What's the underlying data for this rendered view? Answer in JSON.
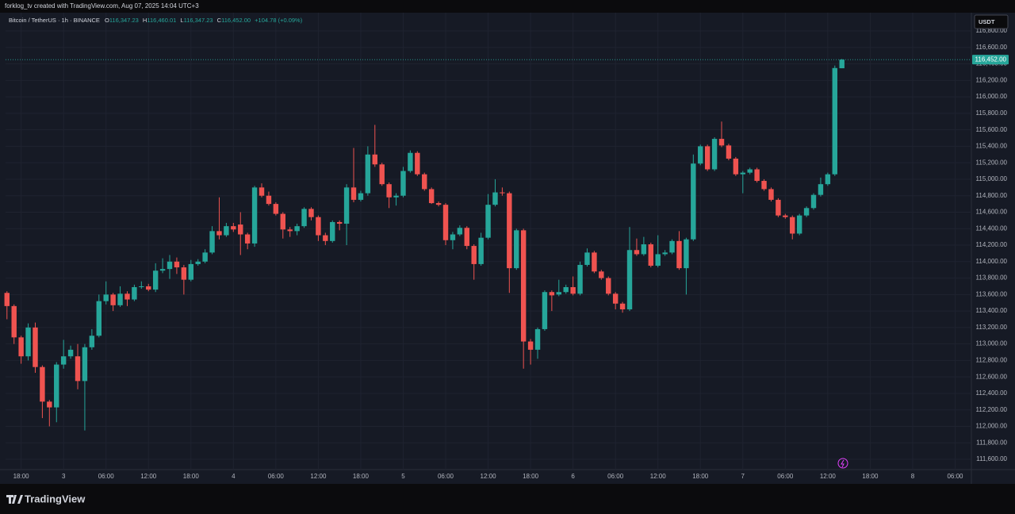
{
  "top_bar": {
    "text": "forklog_tv created with TradingView.com, Aug 07, 2025 14:04 UTC+3"
  },
  "header": {
    "symbol": "Bitcoin / TetherUS · 1h · BINANCE",
    "open_label": "O",
    "open": "116,347.23",
    "high_label": "H",
    "high": "116,460.01",
    "low_label": "L",
    "low": "116,347.23",
    "close_label": "C",
    "close": "116,452.00",
    "change": "+104.78 (+0.09%)"
  },
  "currency": "USDT",
  "brand": "TradingView",
  "chart_data": {
    "type": "candlestick",
    "up_color": "#26a69a",
    "down_color": "#ef5350",
    "grid": true,
    "last_price": {
      "value": 116452,
      "label": "116,452.00"
    },
    "xlim": [
      -0.2,
      136.3
    ],
    "xticks": [
      {
        "value": 2,
        "label": "18:00"
      },
      {
        "value": 8,
        "label": "3"
      },
      {
        "value": 14,
        "label": "06:00"
      },
      {
        "value": 20,
        "label": "12:00"
      },
      {
        "value": 26,
        "label": "18:00"
      },
      {
        "value": 32,
        "label": "4"
      },
      {
        "value": 38,
        "label": "06:00"
      },
      {
        "value": 44,
        "label": "12:00"
      },
      {
        "value": 50,
        "label": "18:00"
      },
      {
        "value": 56,
        "label": "5"
      },
      {
        "value": 62,
        "label": "06:00"
      },
      {
        "value": 68,
        "label": "12:00"
      },
      {
        "value": 74,
        "label": "18:00"
      },
      {
        "value": 80,
        "label": "6"
      },
      {
        "value": 86,
        "label": "06:00"
      },
      {
        "value": 92,
        "label": "12:00"
      },
      {
        "value": 98,
        "label": "18:00"
      },
      {
        "value": 104,
        "label": "7"
      },
      {
        "value": 110,
        "label": "06:00"
      },
      {
        "value": 116,
        "label": "12:00"
      },
      {
        "value": 122,
        "label": "18:00"
      },
      {
        "value": 128,
        "label": "8"
      },
      {
        "value": 134,
        "label": "06:00"
      }
    ],
    "ylim": [
      111475,
      116887
    ],
    "yticks": [
      {
        "value": 111600,
        "label": "111,600.00"
      },
      {
        "value": 111800,
        "label": "111,800.00"
      },
      {
        "value": 112000,
        "label": "112,000.00"
      },
      {
        "value": 112200,
        "label": "112,200.00"
      },
      {
        "value": 112400,
        "label": "112,400.00"
      },
      {
        "value": 112600,
        "label": "112,600.00"
      },
      {
        "value": 112800,
        "label": "112,800.00"
      },
      {
        "value": 113000,
        "label": "113,000.00"
      },
      {
        "value": 113200,
        "label": "113,200.00"
      },
      {
        "value": 113400,
        "label": "113,400.00"
      },
      {
        "value": 113600,
        "label": "113,600.00"
      },
      {
        "value": 113800,
        "label": "113,800.00"
      },
      {
        "value": 114000,
        "label": "114,000.00"
      },
      {
        "value": 114200,
        "label": "114,200.00"
      },
      {
        "value": 114400,
        "label": "114,400.00"
      },
      {
        "value": 114600,
        "label": "114,600.00"
      },
      {
        "value": 114800,
        "label": "114,800.00"
      },
      {
        "value": 115000,
        "label": "115,000.00"
      },
      {
        "value": 115200,
        "label": "115,200.00"
      },
      {
        "value": 115400,
        "label": "115,400.00"
      },
      {
        "value": 115600,
        "label": "115,600.00"
      },
      {
        "value": 115800,
        "label": "115,800.00"
      },
      {
        "value": 116000,
        "label": "116,000.00"
      },
      {
        "value": 116200,
        "label": "116,200.00"
      },
      {
        "value": 116400,
        "label": "116,400.00"
      },
      {
        "value": 116600,
        "label": "116,600.00"
      },
      {
        "value": 116800,
        "label": "116,800.00"
      }
    ],
    "open": [
      113620,
      113460,
      113080,
      112850,
      113200,
      112720,
      112300,
      112230,
      112750,
      112850,
      112850,
      112550,
      112960,
      113100,
      113520,
      113600,
      113470,
      113610,
      113540,
      113690,
      113700,
      113660,
      113890,
      113910,
      114000,
      113930,
      113780,
      113970,
      114000,
      114110,
      114370,
      114320,
      114430,
      114450,
      114330,
      114220,
      114900,
      114800,
      114700,
      114580,
      114390,
      114370,
      114430,
      114640,
      114540,
      114320,
      114250,
      114480,
      114460,
      114900,
      114750,
      114830,
      115300,
      115180,
      114940,
      114780,
      114800,
      115100,
      115320,
      115060,
      114880,
      114710,
      114690,
      114260,
      114330,
      114410,
      114190,
      113970,
      114290,
      114690,
      114840,
      114830,
      113920,
      114380,
      113030,
      112930,
      113180,
      113630,
      113600,
      113630,
      113690,
      113610,
      113960,
      114110,
      113880,
      113800,
      113610,
      113490,
      113420,
      114140,
      114090,
      114210,
      113950,
      114090,
      114110,
      114250,
      113920,
      114270,
      115190,
      115400,
      115120,
      115490,
      115410,
      115250,
      115060,
      115080,
      115120,
      114980,
      114880,
      114750,
      114560,
      114540,
      114340,
      114560,
      114650,
      114810,
      114940,
      115060,
      116347.23
    ],
    "high": [
      113640,
      113480,
      113100,
      113250,
      113260,
      112740,
      112320,
      112780,
      113050,
      112980,
      113000,
      113000,
      113180,
      113600,
      113760,
      113620,
      113700,
      113640,
      113720,
      113760,
      113730,
      113980,
      114040,
      114080,
      114050,
      113960,
      114020,
      114030,
      114150,
      114430,
      114780,
      114470,
      114470,
      114600,
      114350,
      114920,
      114950,
      114850,
      114720,
      114600,
      114420,
      114460,
      114660,
      114660,
      114560,
      114350,
      114500,
      114500,
      114940,
      115380,
      114860,
      115400,
      115660,
      115200,
      114960,
      114830,
      115150,
      115350,
      115340,
      115080,
      114900,
      114730,
      114710,
      114360,
      114440,
      114430,
      114210,
      114350,
      114820,
      115000,
      114900,
      114850,
      114400,
      114400,
      113060,
      113200,
      113650,
      113650,
      113780,
      113720,
      113820,
      114000,
      114160,
      114130,
      113900,
      113820,
      113630,
      113510,
      114420,
      114280,
      114300,
      114230,
      114320,
      114140,
      114270,
      114370,
      114290,
      115300,
      115420,
      115420,
      115510,
      115700,
      115430,
      115270,
      115100,
      115140,
      115140,
      115000,
      114900,
      114770,
      114580,
      114560,
      114580,
      114670,
      114830,
      115020,
      115080,
      116380,
      116460.01
    ],
    "low": [
      113300,
      113000,
      112760,
      112800,
      112650,
      112100,
      112000,
      112050,
      112700,
      112820,
      112450,
      111950,
      112930,
      113080,
      113480,
      113400,
      113450,
      113460,
      113520,
      113670,
      113640,
      113630,
      113860,
      113790,
      113850,
      113600,
      113760,
      113950,
      113980,
      114090,
      114270,
      114300,
      114360,
      114080,
      114150,
      114180,
      114780,
      114680,
      114560,
      114280,
      114300,
      114320,
      114410,
      114500,
      114250,
      114200,
      114230,
      114380,
      114200,
      114720,
      114730,
      114800,
      115150,
      114920,
      114650,
      114680,
      114780,
      115080,
      115040,
      114860,
      114700,
      114670,
      114200,
      114150,
      114310,
      114150,
      113780,
      113950,
      114270,
      114670,
      114800,
      113620,
      113900,
      112700,
      112750,
      112820,
      113160,
      113400,
      113580,
      113610,
      113590,
      113590,
      113940,
      113860,
      113780,
      113590,
      113420,
      113380,
      113400,
      114070,
      114070,
      113930,
      113930,
      114070,
      114090,
      113900,
      113600,
      114250,
      115170,
      115100,
      115100,
      115390,
      115230,
      115040,
      114830,
      115060,
      114960,
      114860,
      114730,
      114540,
      114520,
      114270,
      114320,
      114540,
      114630,
      114790,
      114920,
      115040,
      116347.23
    ],
    "close": [
      113460,
      113080,
      112850,
      113200,
      112720,
      112300,
      112230,
      112750,
      112850,
      112930,
      112550,
      112960,
      113100,
      113520,
      113600,
      113470,
      113610,
      113540,
      113690,
      113700,
      113660,
      113890,
      113910,
      114000,
      113930,
      113780,
      113970,
      114000,
      114110,
      114370,
      114320,
      114430,
      114390,
      114330,
      114220,
      114900,
      114800,
      114700,
      114580,
      114390,
      114370,
      114430,
      114640,
      114540,
      114320,
      114250,
      114480,
      114460,
      114900,
      114750,
      114830,
      115300,
      115180,
      114940,
      114780,
      114800,
      115100,
      115320,
      115060,
      114880,
      114710,
      114690,
      114260,
      114330,
      114410,
      114190,
      113970,
      114290,
      114690,
      114840,
      114830,
      113920,
      114380,
      113030,
      112930,
      113180,
      113630,
      113590,
      113630,
      113690,
      113610,
      113960,
      114110,
      113880,
      113800,
      113610,
      113490,
      113420,
      114140,
      114090,
      114210,
      113950,
      114090,
      114110,
      114250,
      113920,
      114270,
      115190,
      115400,
      115120,
      115490,
      115410,
      115250,
      115060,
      115080,
      115120,
      114980,
      114880,
      114750,
      114560,
      114540,
      114340,
      114560,
      114650,
      114810,
      114940,
      115060,
      116350,
      116452
    ]
  }
}
